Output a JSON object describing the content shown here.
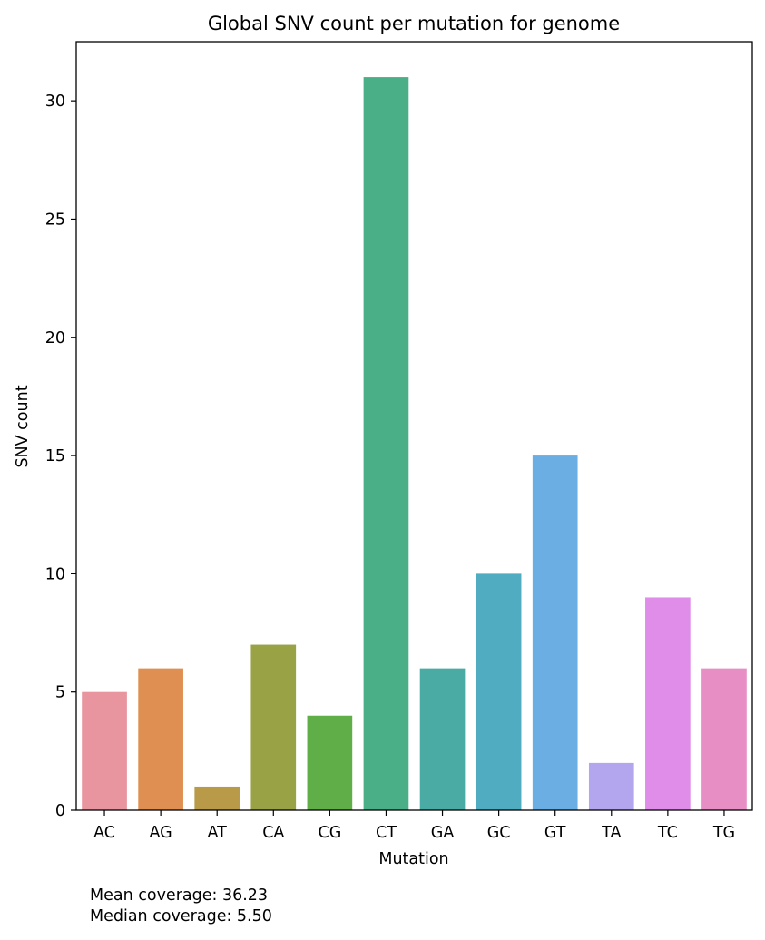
{
  "chart_data": {
    "type": "bar",
    "title": "Global SNV count per mutation for genome",
    "xlabel": "Mutation",
    "ylabel": "SNV count",
    "categories": [
      "AC",
      "AG",
      "AT",
      "CA",
      "CG",
      "CT",
      "GA",
      "GC",
      "GT",
      "TA",
      "TC",
      "TG"
    ],
    "values": [
      5,
      6,
      1,
      7,
      4,
      31,
      6,
      10,
      15,
      2,
      9,
      6
    ],
    "colors": [
      "#e8959f",
      "#e08f52",
      "#b89a48",
      "#99a244",
      "#5fae48",
      "#4aae87",
      "#4aaba5",
      "#50adc1",
      "#6aaee3",
      "#b4a6ee",
      "#df8de9",
      "#e78fc5"
    ],
    "yticks": [
      0,
      5,
      10,
      15,
      20,
      25,
      30
    ],
    "ylim": [
      0,
      32.5
    ],
    "grid": false,
    "legend": "none"
  },
  "annotations": {
    "mean_coverage": "Mean coverage: 36.23",
    "median_coverage": "Median coverage: 5.50"
  }
}
